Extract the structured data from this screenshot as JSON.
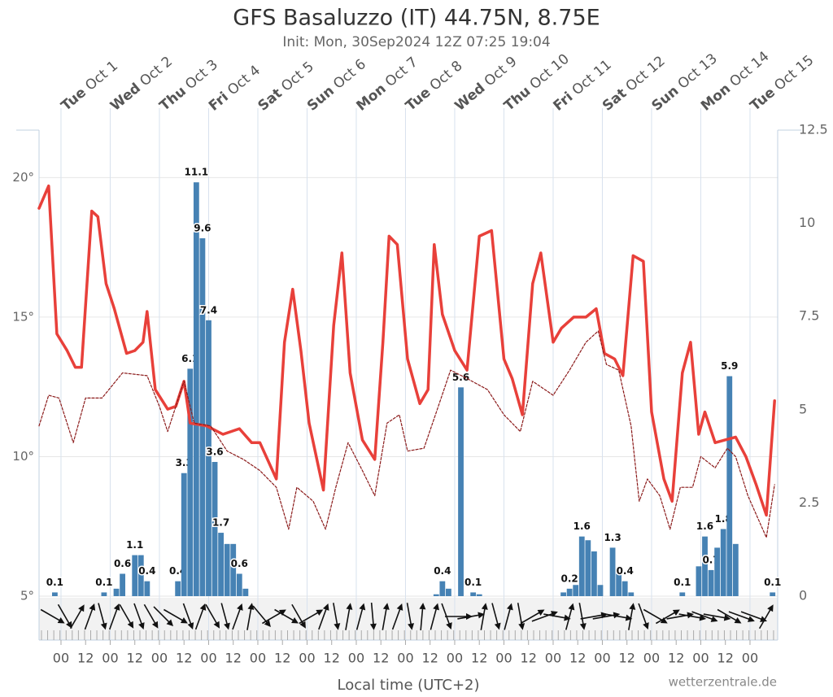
{
  "chart_data": {
    "type": "meteogram",
    "title": "GFS Basaluzzo (IT) 44.75N, 8.75E",
    "subtitle": "Init: Mon, 30Sep2024 12Z 07:25 19:04",
    "xlabel": "Local time (UTC+2)",
    "credit": "wetterzentrale.de",
    "xlim": [
      -10.7,
      349.5
    ],
    "xticks": [
      {
        "value": 0,
        "label": "00"
      },
      {
        "value": 12,
        "label": "12"
      },
      {
        "value": 24,
        "label": "00"
      },
      {
        "value": 36,
        "label": "12"
      },
      {
        "value": 48,
        "label": "00"
      },
      {
        "value": 60,
        "label": "12"
      },
      {
        "value": 72,
        "label": "00"
      },
      {
        "value": 84,
        "label": "12"
      },
      {
        "value": 96,
        "label": "00"
      },
      {
        "value": 108,
        "label": "12"
      },
      {
        "value": 120,
        "label": "00"
      },
      {
        "value": 132,
        "label": "12"
      },
      {
        "value": 144,
        "label": "00"
      },
      {
        "value": 156,
        "label": "12"
      },
      {
        "value": 168,
        "label": "00"
      },
      {
        "value": 180,
        "label": "12"
      },
      {
        "value": 192,
        "label": "00"
      },
      {
        "value": 204,
        "label": "12"
      },
      {
        "value": 216,
        "label": "00"
      },
      {
        "value": 228,
        "label": "12"
      },
      {
        "value": 240,
        "label": "00"
      },
      {
        "value": 252,
        "label": "12"
      },
      {
        "value": 264,
        "label": "00"
      },
      {
        "value": 276,
        "label": "12"
      },
      {
        "value": 288,
        "label": "00"
      },
      {
        "value": 300,
        "label": "12"
      },
      {
        "value": 312,
        "label": "00"
      },
      {
        "value": 324,
        "label": "12"
      },
      {
        "value": 336,
        "label": "00"
      }
    ],
    "days": [
      {
        "value": 0,
        "weekday": "Tue",
        "date": "Oct 1"
      },
      {
        "value": 24,
        "weekday": "Wed",
        "date": "Oct 2"
      },
      {
        "value": 48,
        "weekday": "Thu",
        "date": "Oct 3"
      },
      {
        "value": 72,
        "weekday": "Fri",
        "date": "Oct 4"
      },
      {
        "value": 96,
        "weekday": "Sat",
        "date": "Oct 5"
      },
      {
        "value": 120,
        "weekday": "Sun",
        "date": "Oct 6"
      },
      {
        "value": 144,
        "weekday": "Mon",
        "date": "Oct 7"
      },
      {
        "value": 168,
        "weekday": "Tue",
        "date": "Oct 8"
      },
      {
        "value": 192,
        "weekday": "Wed",
        "date": "Oct 9"
      },
      {
        "value": 216,
        "weekday": "Thu",
        "date": "Oct 10"
      },
      {
        "value": 240,
        "weekday": "Fri",
        "date": "Oct 11"
      },
      {
        "value": 264,
        "weekday": "Sat",
        "date": "Oct 12"
      },
      {
        "value": 288,
        "weekday": "Sun",
        "date": "Oct 13"
      },
      {
        "value": 312,
        "weekday": "Mon",
        "date": "Oct 14"
      },
      {
        "value": 336,
        "weekday": "Tue",
        "date": "Oct 15"
      }
    ],
    "ylim": [
      5,
      21.7
    ],
    "yticks": [
      {
        "value": 5,
        "label": "5°"
      },
      {
        "value": 10,
        "label": "10°"
      },
      {
        "value": 15,
        "label": "15°"
      },
      {
        "value": 20,
        "label": "20°"
      }
    ],
    "y2lim": [
      0,
      12.5
    ],
    "y2ticks": [
      0,
      2.5,
      5,
      7.5,
      10,
      12.5
    ],
    "grid": true,
    "series": [
      {
        "name": "temperature",
        "color": "#e8403a",
        "style": "solid",
        "x": [
          -10.7,
          -6,
          -2,
          3,
          7,
          10,
          15,
          18,
          22,
          26,
          32,
          36,
          40,
          42,
          46,
          52,
          56,
          60,
          63,
          71,
          79,
          87,
          93,
          97,
          105,
          109,
          113,
          117,
          121,
          128,
          133,
          137,
          141,
          147,
          153,
          157,
          160,
          164,
          169,
          175,
          179,
          182,
          186,
          192,
          198,
          204,
          210,
          216,
          220,
          225,
          230,
          234,
          240,
          244,
          250,
          256,
          261,
          265,
          270,
          274,
          279,
          284,
          288,
          294,
          298,
          303,
          307,
          311,
          314,
          319,
          329,
          334,
          339,
          344,
          348
        ],
        "values": [
          18.9,
          19.7,
          14.4,
          13.8,
          13.2,
          13.2,
          18.8,
          18.6,
          16.2,
          15.3,
          13.7,
          13.8,
          14.1,
          15.2,
          12.4,
          11.7,
          11.8,
          12.7,
          11.2,
          11.1,
          10.8,
          11.0,
          10.5,
          10.5,
          9.2,
          14.1,
          16.0,
          13.8,
          11.2,
          8.8,
          14.7,
          17.3,
          13.0,
          10.6,
          9.9,
          14.1,
          17.9,
          17.6,
          13.5,
          11.9,
          12.4,
          17.6,
          15.1,
          13.8,
          13.1,
          17.9,
          18.1,
          13.5,
          12.8,
          11.5,
          16.2,
          17.3,
          14.1,
          14.6,
          15.0,
          15.0,
          15.3,
          13.7,
          13.5,
          12.9,
          17.2,
          17.0,
          11.6,
          9.2,
          8.4,
          13.0,
          14.1,
          10.8,
          11.6,
          10.5,
          10.7,
          10.0,
          9.0,
          7.9,
          12.0
        ]
      },
      {
        "name": "dewpoint",
        "color": "#8b1a1a",
        "style": "dashed",
        "x": [
          -10.7,
          -6,
          -1,
          6,
          12,
          20,
          30,
          42,
          48,
          52,
          60,
          65,
          73,
          81,
          89,
          97,
          105,
          111,
          115,
          123,
          129,
          134,
          140,
          147,
          153,
          159,
          165,
          169,
          177,
          184,
          190,
          198,
          208,
          216,
          224,
          230,
          240,
          248,
          256,
          262,
          266,
          272,
          278,
          282,
          286,
          292,
          297,
          302,
          308,
          312,
          319,
          325,
          329,
          335,
          344,
          348
        ],
        "values": [
          11.1,
          12.2,
          12.1,
          10.5,
          12.1,
          12.1,
          13.0,
          12.9,
          11.8,
          10.9,
          12.7,
          11.2,
          11.1,
          10.2,
          9.9,
          9.5,
          8.9,
          7.4,
          8.9,
          8.4,
          7.4,
          8.9,
          10.5,
          9.5,
          8.6,
          11.2,
          11.5,
          10.2,
          10.3,
          11.8,
          13.1,
          12.8,
          12.4,
          11.5,
          10.9,
          12.7,
          12.2,
          13.1,
          14.1,
          14.5,
          13.3,
          13.1,
          11.1,
          8.4,
          9.2,
          8.6,
          7.4,
          8.9,
          8.9,
          10.0,
          9.6,
          10.3,
          10.0,
          8.6,
          7.1,
          9.0
        ]
      },
      {
        "name": "precipitation",
        "color": "#4682b4",
        "axis": "y2",
        "width": 3,
        "x": [
          -3,
          21,
          27,
          30,
          36,
          39,
          42,
          57,
          60,
          63,
          66,
          69,
          72,
          75,
          78,
          81,
          84,
          87,
          90,
          183,
          186,
          189,
          195,
          201,
          204,
          245,
          248,
          251,
          254,
          257,
          260,
          263,
          269,
          272,
          275,
          278,
          303,
          311,
          314,
          317,
          320,
          323,
          326,
          329,
          347
        ],
        "values": [
          0.1,
          0.1,
          0.2,
          0.6,
          1.1,
          1.1,
          0.4,
          0.4,
          3.3,
          6.1,
          11.1,
          9.6,
          7.4,
          3.6,
          1.7,
          1.4,
          1.4,
          0.6,
          0.2,
          0.05,
          0.4,
          0.2,
          5.6,
          0.1,
          0.05,
          0.1,
          0.2,
          0.3,
          1.6,
          1.5,
          1.2,
          0.3,
          1.3,
          0.6,
          0.4,
          0.1,
          0.1,
          0.8,
          1.6,
          0.7,
          1.3,
          1.8,
          5.9,
          1.4,
          0.1
        ],
        "value_labels": [
          "0.1",
          "0.1",
          null,
          "0.6",
          "1.1",
          null,
          "0.4",
          "0.4",
          "3.3",
          "6.1",
          "11.1",
          "9.6",
          "7.4",
          "3.6",
          "1.7",
          null,
          null,
          "0.6",
          null,
          null,
          "0.4",
          null,
          "5.6",
          "0.1",
          null,
          null,
          "0.2",
          null,
          "1.6",
          null,
          null,
          null,
          "1.3",
          null,
          "0.4",
          null,
          "0.1",
          null,
          "1.6",
          "0.7",
          null,
          "1.8",
          "5.9",
          null,
          "0.1"
        ]
      }
    ],
    "wind": {
      "x": [
        -4,
        2,
        8,
        14,
        20,
        26,
        32,
        38,
        44,
        50,
        56,
        62,
        68,
        74,
        80,
        86,
        92,
        98,
        104,
        110,
        116,
        122,
        128,
        134,
        140,
        146,
        152,
        158,
        164,
        170,
        176,
        182,
        188,
        194,
        200,
        206,
        212,
        218,
        224,
        230,
        236,
        242,
        248,
        254,
        260,
        266,
        272,
        278,
        284,
        290,
        296,
        302,
        308,
        314,
        320,
        326,
        332,
        338,
        344
      ],
      "directions": [
        120,
        150,
        30,
        20,
        165,
        20,
        150,
        160,
        150,
        135,
        120,
        160,
        20,
        150,
        165,
        20,
        10,
        140,
        60,
        120,
        150,
        60,
        20,
        170,
        10,
        15,
        175,
        10,
        20,
        170,
        5,
        15,
        160,
        90,
        80,
        10,
        165,
        15,
        170,
        60,
        70,
        100,
        15,
        170,
        80,
        80,
        100,
        10,
        160,
        120,
        60,
        80,
        100,
        110,
        100,
        120,
        110,
        110,
        30
      ]
    }
  }
}
